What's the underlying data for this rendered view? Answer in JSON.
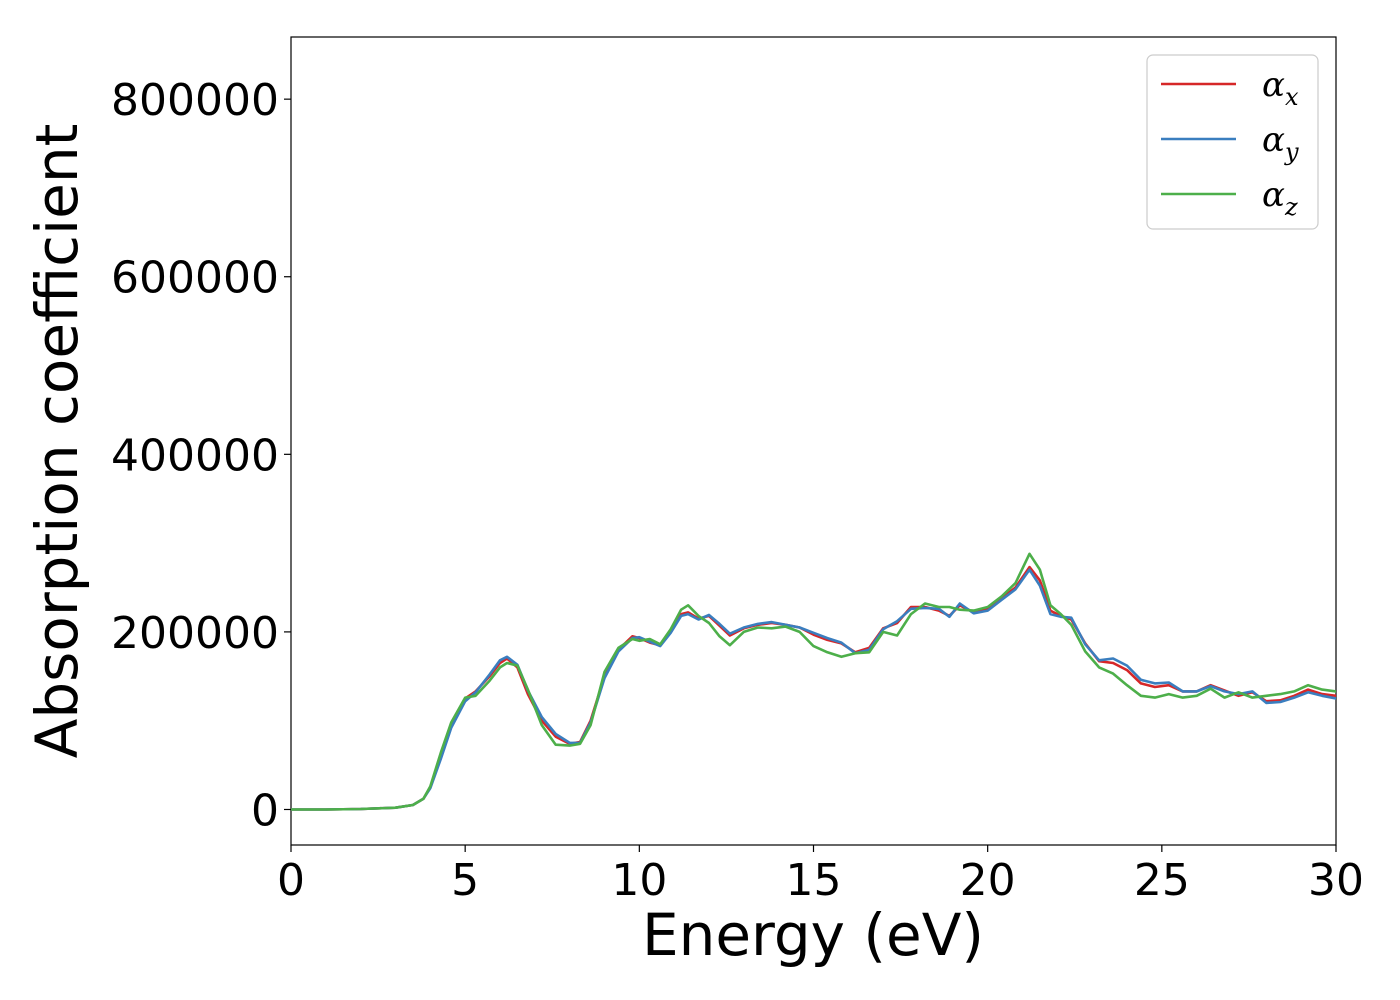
{
  "chart_data": {
    "type": "line",
    "title": "",
    "xlabel": "Energy (eV)",
    "ylabel": "Absorption coefficient",
    "xlim": [
      0,
      30
    ],
    "ylim": [
      -40000,
      870000
    ],
    "xticks": [
      0,
      5,
      10,
      15,
      20,
      25,
      30
    ],
    "yticks": [
      0,
      200000,
      400000,
      600000,
      800000
    ],
    "grid": false,
    "legend": "top-right",
    "series": [
      {
        "name": "αx",
        "base": "α",
        "sub": "x",
        "color": "#d62728",
        "x": [
          0,
          1,
          2,
          3,
          3.5,
          3.8,
          4.0,
          4.3,
          4.6,
          5.0,
          5.3,
          5.7,
          6.0,
          6.2,
          6.5,
          6.8,
          7.2,
          7.6,
          8.0,
          8.3,
          8.6,
          9.0,
          9.4,
          9.8,
          10.0,
          10.3,
          10.6,
          10.9,
          11.2,
          11.4,
          11.7,
          12.0,
          12.3,
          12.6,
          13.0,
          13.4,
          13.8,
          14.2,
          14.6,
          15.0,
          15.4,
          15.8,
          16.2,
          16.6,
          17.0,
          17.4,
          17.8,
          18.2,
          18.6,
          18.9,
          19.2,
          19.6,
          20.0,
          20.4,
          20.8,
          21.2,
          21.5,
          21.8,
          22.1,
          22.4,
          22.8,
          23.2,
          23.6,
          24.0,
          24.4,
          24.8,
          25.2,
          25.6,
          26.0,
          26.4,
          26.8,
          27.2,
          27.6,
          28.0,
          28.4,
          28.8,
          29.2,
          29.6,
          30.0
        ],
        "y": [
          0,
          0,
          500,
          2000,
          5000,
          12000,
          25000,
          60000,
          95000,
          125000,
          133000,
          150000,
          165000,
          170000,
          160000,
          130000,
          100000,
          82000,
          74000,
          76000,
          100000,
          150000,
          180000,
          195000,
          193000,
          188000,
          185000,
          200000,
          220000,
          222000,
          215000,
          218000,
          207000,
          196000,
          204000,
          208000,
          210000,
          208000,
          205000,
          197000,
          191000,
          187000,
          177000,
          182000,
          204000,
          210000,
          228000,
          228000,
          224000,
          218000,
          230000,
          222000,
          226000,
          238000,
          250000,
          273000,
          258000,
          224000,
          218000,
          214000,
          187000,
          167000,
          165000,
          157000,
          142000,
          138000,
          140000,
          133000,
          133000,
          140000,
          134000,
          128000,
          132000,
          122000,
          123000,
          128000,
          135000,
          130000,
          128000
        ]
      },
      {
        "name": "αy",
        "base": "α",
        "sub": "y",
        "color": "#3a7ebf",
        "x": [
          0,
          1,
          2,
          3,
          3.5,
          3.8,
          4.0,
          4.3,
          4.6,
          5.0,
          5.3,
          5.7,
          6.0,
          6.2,
          6.5,
          6.8,
          7.2,
          7.6,
          8.0,
          8.3,
          8.6,
          9.0,
          9.4,
          9.8,
          10.0,
          10.3,
          10.6,
          10.9,
          11.2,
          11.4,
          11.7,
          12.0,
          12.3,
          12.6,
          13.0,
          13.4,
          13.8,
          14.2,
          14.6,
          15.0,
          15.4,
          15.8,
          16.2,
          16.6,
          17.0,
          17.4,
          17.8,
          18.2,
          18.6,
          18.9,
          19.2,
          19.6,
          20.0,
          20.4,
          20.8,
          21.2,
          21.5,
          21.8,
          22.1,
          22.4,
          22.8,
          23.2,
          23.6,
          24.0,
          24.4,
          24.8,
          25.2,
          25.6,
          26.0,
          26.4,
          26.8,
          27.2,
          27.6,
          28.0,
          28.4,
          28.8,
          29.2,
          29.6,
          30.0
        ],
        "y": [
          0,
          0,
          500,
          2000,
          5000,
          12000,
          24000,
          57000,
          92000,
          122000,
          132000,
          152000,
          168000,
          172000,
          163000,
          134000,
          104000,
          85000,
          75000,
          75000,
          98000,
          148000,
          178000,
          193000,
          194000,
          189000,
          184000,
          199000,
          218000,
          220000,
          214000,
          219000,
          209000,
          198000,
          205000,
          209000,
          211000,
          208000,
          205000,
          199000,
          193000,
          188000,
          176000,
          180000,
          203000,
          212000,
          226000,
          227000,
          226000,
          217000,
          232000,
          221000,
          224000,
          236000,
          248000,
          270000,
          252000,
          220000,
          217000,
          216000,
          186000,
          168000,
          170000,
          162000,
          146000,
          142000,
          143000,
          133000,
          133000,
          139000,
          133000,
          130000,
          133000,
          120000,
          121000,
          126000,
          132000,
          128000,
          125000
        ]
      },
      {
        "name": "αz",
        "base": "α",
        "sub": "z",
        "color": "#4daf4a",
        "x": [
          0,
          1,
          2,
          3,
          3.5,
          3.8,
          4.0,
          4.3,
          4.6,
          5.0,
          5.3,
          5.7,
          6.0,
          6.2,
          6.5,
          6.8,
          7.2,
          7.6,
          8.0,
          8.3,
          8.6,
          9.0,
          9.4,
          9.8,
          10.0,
          10.3,
          10.6,
          10.9,
          11.2,
          11.4,
          11.7,
          12.0,
          12.3,
          12.6,
          13.0,
          13.4,
          13.8,
          14.2,
          14.6,
          15.0,
          15.4,
          15.8,
          16.2,
          16.6,
          17.0,
          17.4,
          17.8,
          18.2,
          18.6,
          18.9,
          19.2,
          19.6,
          20.0,
          20.4,
          20.8,
          21.2,
          21.5,
          21.8,
          22.1,
          22.4,
          22.8,
          23.2,
          23.6,
          24.0,
          24.4,
          24.8,
          25.2,
          25.6,
          26.0,
          26.4,
          26.8,
          27.2,
          27.6,
          28.0,
          28.4,
          28.8,
          29.2,
          29.6,
          30.0
        ],
        "y": [
          0,
          0,
          500,
          2000,
          5000,
          12000,
          26000,
          64000,
          98000,
          126000,
          128000,
          145000,
          160000,
          165000,
          162000,
          135000,
          95000,
          73000,
          72000,
          74000,
          95000,
          155000,
          182000,
          192000,
          190000,
          192000,
          186000,
          203000,
          225000,
          230000,
          218000,
          210000,
          195000,
          185000,
          200000,
          205000,
          204000,
          206000,
          200000,
          184000,
          177000,
          172000,
          176000,
          177000,
          200000,
          196000,
          220000,
          232000,
          228000,
          228000,
          225000,
          224000,
          228000,
          240000,
          255000,
          288000,
          270000,
          230000,
          220000,
          208000,
          178000,
          160000,
          153000,
          140000,
          128000,
          126000,
          130000,
          126000,
          128000,
          136000,
          126000,
          132000,
          126000,
          128000,
          130000,
          133000,
          140000,
          135000,
          133000
        ]
      }
    ]
  }
}
